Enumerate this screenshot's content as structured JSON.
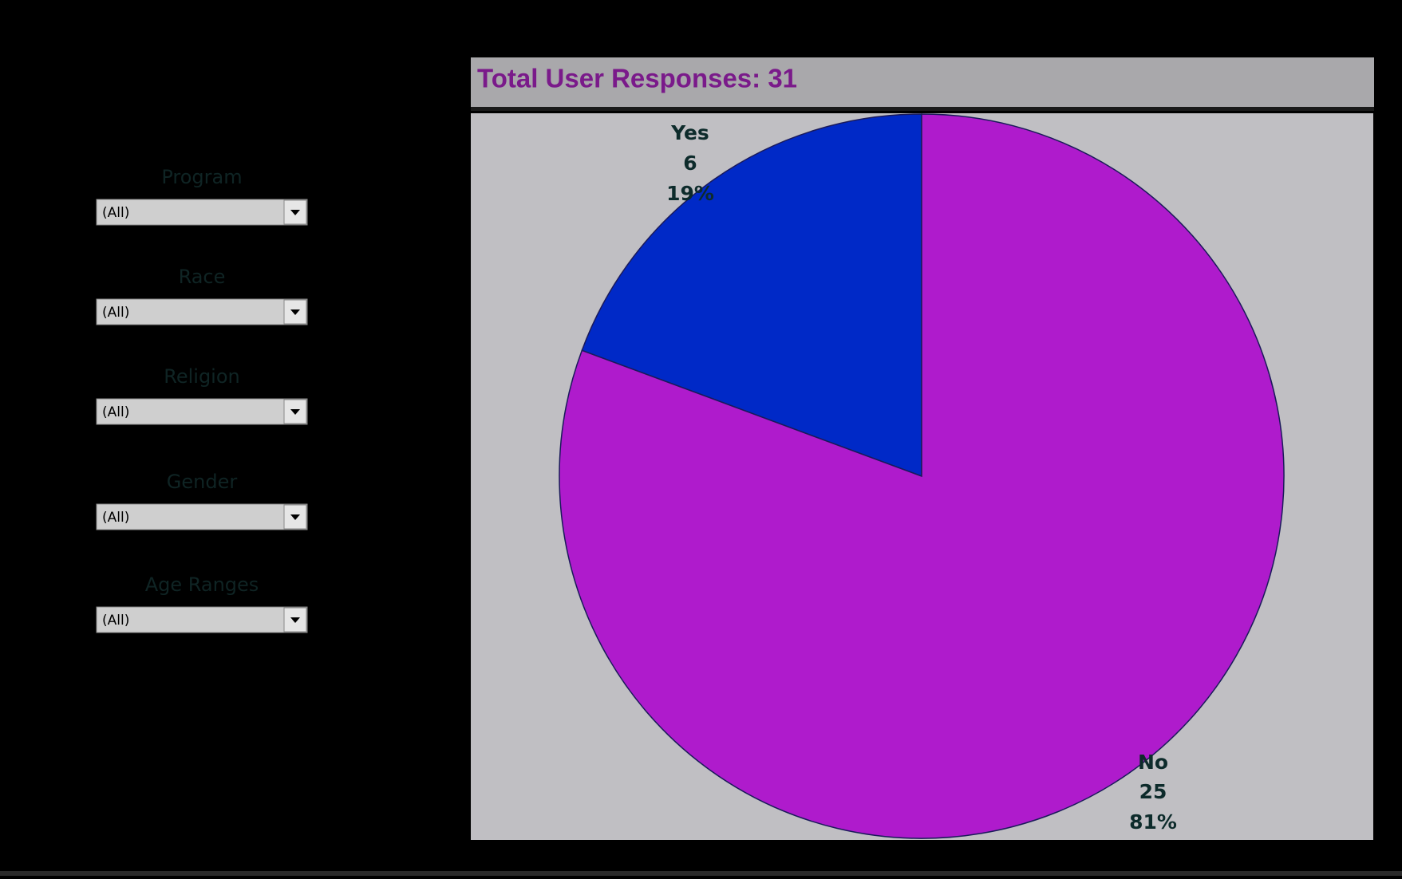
{
  "filters": [
    {
      "label": "Program",
      "value": "(All)"
    },
    {
      "label": "Race",
      "value": "(All)"
    },
    {
      "label": "Religion",
      "value": "(All)"
    },
    {
      "label": "Gender",
      "value": "(All)"
    },
    {
      "label": "Age Ranges",
      "value": "(All)"
    }
  ],
  "chart_data": {
    "type": "pie",
    "title": "Total User Responses: 31",
    "categories": [
      "Yes",
      "No"
    ],
    "values": [
      6,
      25
    ],
    "percents": [
      {
        "value": 19,
        "label": "19%"
      },
      {
        "value": 81,
        "label": "81%"
      }
    ],
    "colors": [
      "#0029c7",
      "#af1bcc"
    ]
  }
}
